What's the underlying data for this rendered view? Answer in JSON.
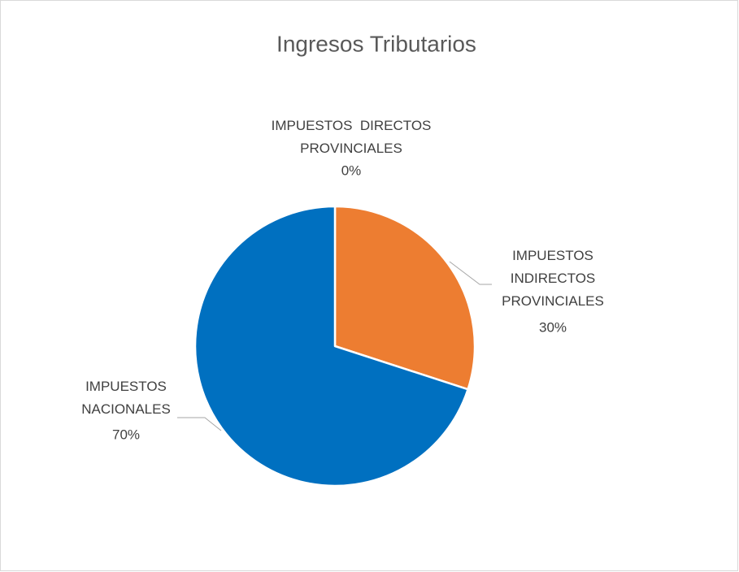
{
  "chart_data": {
    "type": "pie",
    "title": "Ingresos Tributarios",
    "categories": [
      "IMPUESTOS  DIRECTOS PROVINCIALES",
      "IMPUESTOS INDIRECTOS PROVINCIALES",
      "IMPUESTOS NACIONALES"
    ],
    "values": [
      0,
      30,
      70
    ],
    "value_labels": [
      "0%",
      "30%",
      "70%"
    ],
    "colors": [
      "#a5a5a5",
      "#ed7d31",
      "#0070c0"
    ]
  }
}
